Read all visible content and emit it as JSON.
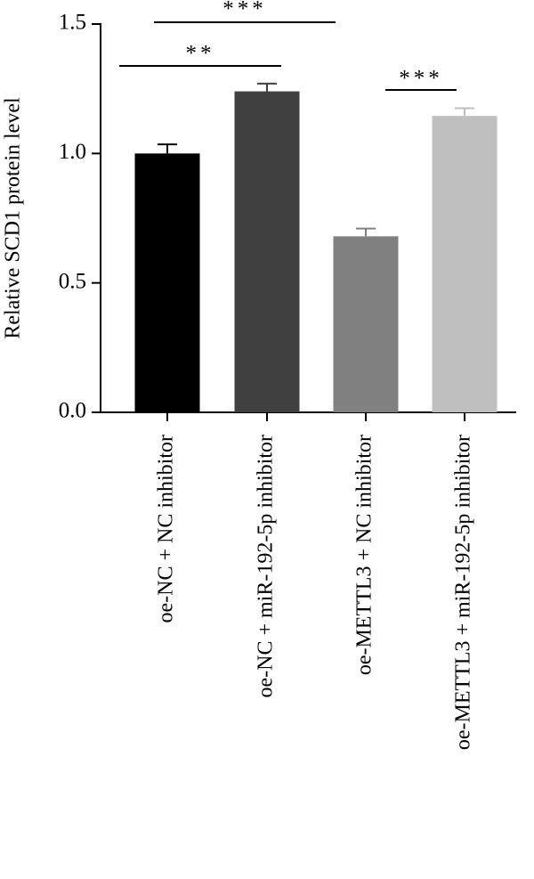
{
  "chart_data": {
    "type": "bar",
    "y_label": "Relative SCD1 protein level",
    "categories": [
      "oe-NC + NC inhibitor",
      "oe-NC + miR-192-5p inhibitor",
      "oe-METTL3 + NC inhibitor",
      "oe-METTL3 + miR-192-5p inhibitor"
    ],
    "values": [
      1.0,
      1.24,
      0.68,
      1.145
    ],
    "errors": [
      0.035,
      0.03,
      0.03,
      0.03
    ],
    "colors": [
      "#000000",
      "#404040",
      "#808080",
      "#bfbfbf"
    ],
    "ylim": [
      0,
      1.5
    ],
    "yticks": [
      {
        "value": 0,
        "label": "0.0"
      },
      0.5,
      {
        "value": 1,
        "label": "1.0"
      },
      1.5
    ],
    "annotations": [
      "***",
      "**",
      "***"
    ]
  }
}
